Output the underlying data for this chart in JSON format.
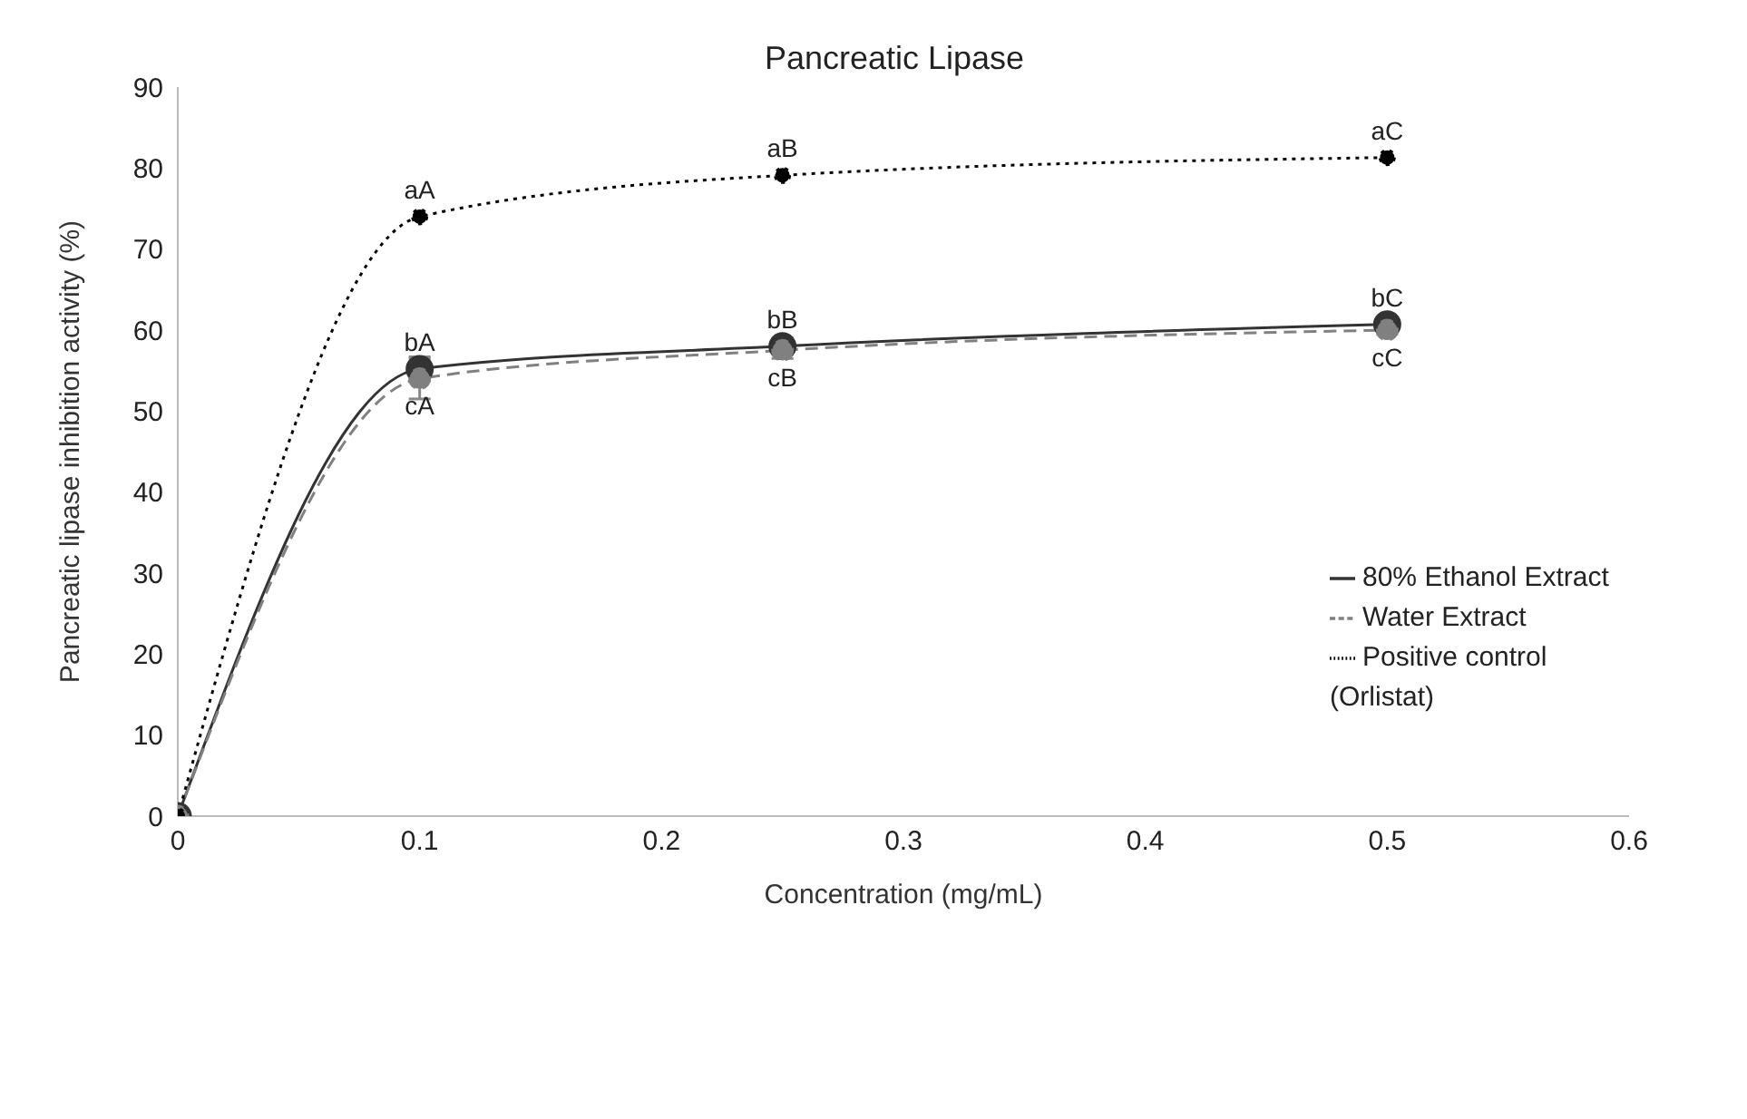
{
  "chart_data": {
    "type": "line",
    "title": "Pancreatic Lipase",
    "xlabel": "Concentration (mg/mL)",
    "ylabel": "Pancreatic lipase inhibition activity (%)",
    "x": [
      0,
      0.1,
      0.25,
      0.5
    ],
    "series": [
      {
        "name": "80% Ethanol Extract",
        "color": "#333333",
        "line_style": "solid",
        "values": [
          0,
          55.2,
          58,
          60.7
        ],
        "errors": [
          null,
          1.5,
          1,
          0.5
        ]
      },
      {
        "name": "Water Extract",
        "color": "#808080",
        "line_style": "dashed",
        "values": [
          0,
          54,
          57.5,
          60
        ],
        "errors": [
          null,
          2.5,
          1,
          0.5
        ]
      },
      {
        "name": "Positive control (Orlistat)",
        "color": "#000000",
        "line_style": "dotted",
        "values": [
          0,
          74,
          79.1,
          81.3
        ]
      }
    ],
    "xlim": [
      0,
      0.6
    ],
    "xticks": [
      0,
      0.1,
      0.2,
      0.3,
      0.4,
      0.5,
      0.6
    ],
    "ylim": [
      0,
      90
    ],
    "yticks": [
      0,
      10,
      20,
      30,
      40,
      50,
      60,
      70,
      80,
      90
    ],
    "grid": false,
    "legend": "right",
    "marker": "circle",
    "annotations": [
      {
        "text": "aA",
        "x": 0.1,
        "y": 74
      },
      {
        "text": "aB",
        "x": 0.25,
        "y": 79.1
      },
      {
        "text": "aC",
        "x": 0.5,
        "y": 81.3
      },
      {
        "text": "bA",
        "x": 0.1,
        "y": 55.2
      },
      {
        "text": "bB",
        "x": 0.25,
        "y": 58
      },
      {
        "text": "bC",
        "x": 0.5,
        "y": 60.7
      },
      {
        "text": "cA",
        "x": 0.1,
        "y": 54
      },
      {
        "text": "cB",
        "x": 0.25,
        "y": 57.5
      },
      {
        "text": "cC",
        "x": 0.5,
        "y": 60
      }
    ]
  }
}
